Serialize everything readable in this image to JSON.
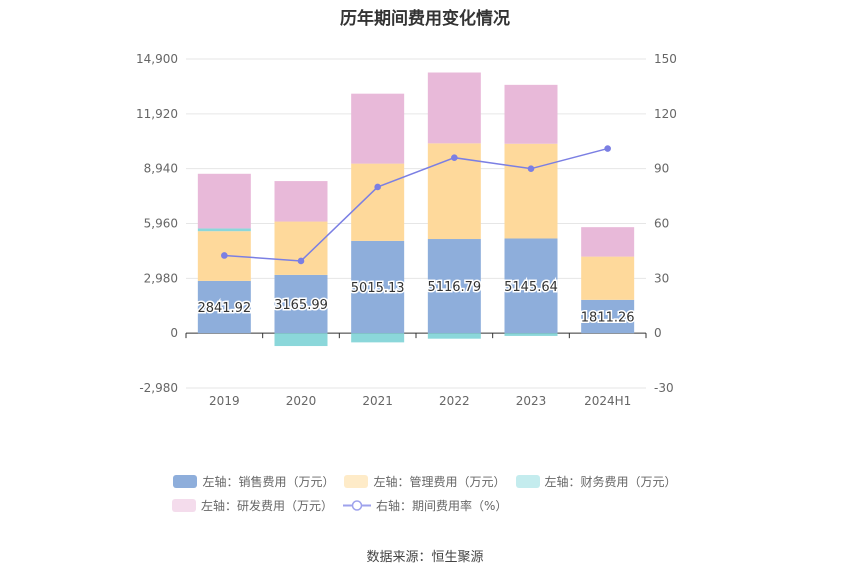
{
  "chart_data": {
    "type": "bar",
    "title": "历年期间费用变化情况",
    "categories": [
      "2019",
      "2020",
      "2021",
      "2022",
      "2023",
      "2024H1"
    ],
    "left_axis": {
      "ylim": [
        -2980,
        14900
      ],
      "ticks": [
        -2980,
        0,
        2980,
        5960,
        8940,
        11920,
        14900
      ],
      "tick_labels": [
        "-2,980",
        "0",
        "2,980",
        "5,960",
        "8,940",
        "11,920",
        "14,900"
      ]
    },
    "right_axis": {
      "ylim": [
        -30,
        150
      ],
      "ticks": [
        -30,
        0,
        30,
        60,
        90,
        120,
        150
      ],
      "tick_labels": [
        "-30",
        "0",
        "30",
        "60",
        "90",
        "120",
        "150"
      ]
    },
    "series": [
      {
        "name": "左轴：销售费用（万元）",
        "type": "bar",
        "color": "#8eaedb",
        "values": [
          2841.92,
          3165.99,
          5015.13,
          5116.79,
          5145.64,
          1811.26
        ],
        "labels": [
          "2841.92",
          "3165.99",
          "5015.13",
          "5116.79",
          "5145.64",
          "1811.26"
        ]
      },
      {
        "name": "左轴：管理费用（万元）",
        "type": "bar",
        "color": "#fed99b",
        "legend_color": "#feebc8",
        "values": [
          2700,
          2900,
          4200,
          5200,
          5150,
          2350
        ]
      },
      {
        "name": "左轴：财务费用（万元）",
        "type": "bar",
        "color": "#8bd7da",
        "legend_color": "#c4ecee",
        "values": [
          150,
          -700,
          -500,
          -300,
          -150,
          0
        ]
      },
      {
        "name": "左轴：研发费用（万元）",
        "type": "bar",
        "color": "#e8b9d9",
        "legend_color": "#f4dcec",
        "values": [
          2970,
          2200,
          3800,
          3850,
          3200,
          1600
        ]
      },
      {
        "name": "右轴：期间费用率（%）",
        "type": "line",
        "axis": "right",
        "color": "#7b7fe3",
        "values": [
          42.5,
          39.5,
          80,
          96,
          90,
          101
        ]
      }
    ]
  },
  "source": "数据来源：恒生聚源"
}
